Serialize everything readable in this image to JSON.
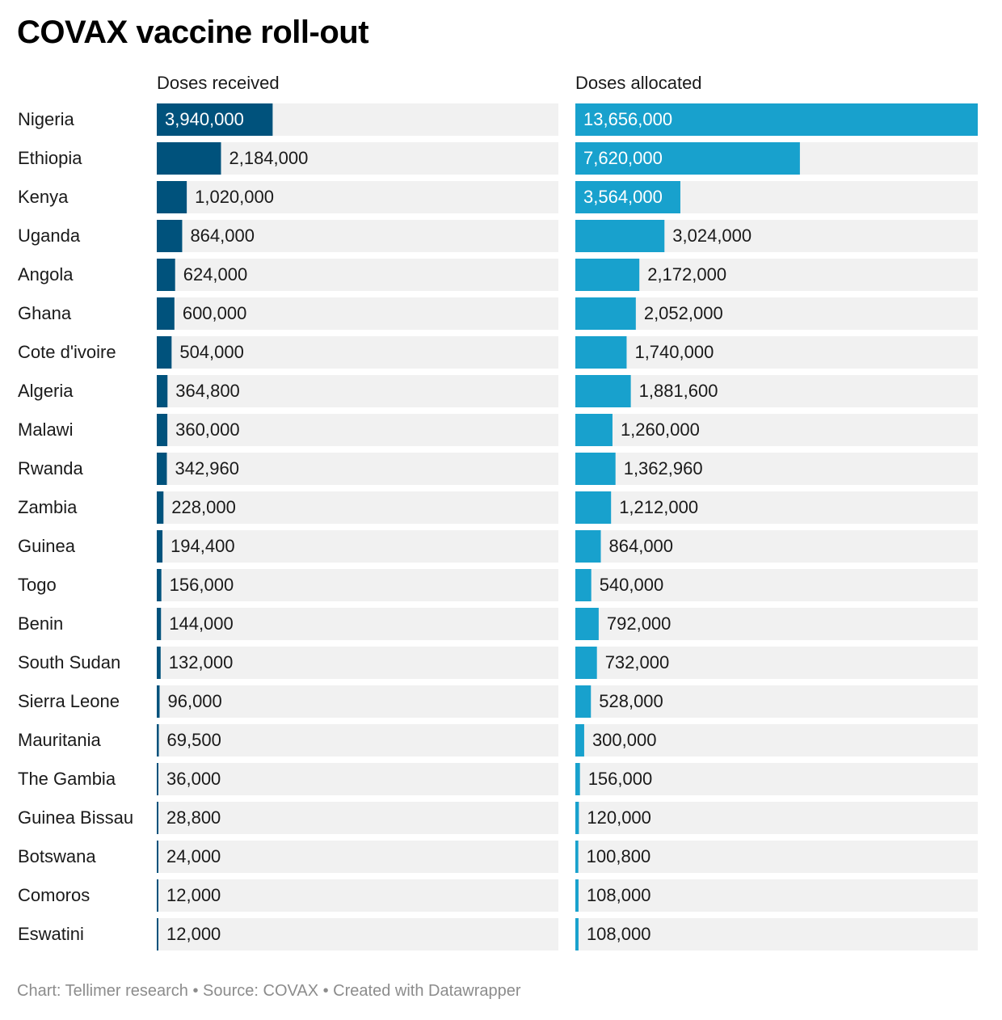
{
  "title": "COVAX vaccine roll-out",
  "footer": "Chart: Tellimer research • Source: COVAX • Created with Datawrapper",
  "colors": {
    "received": "#00527c",
    "allocated": "#18a1cd",
    "track": "#f1f1f1",
    "label_dark": "#1a1a1a",
    "label_light": "#ffffff"
  },
  "chart_data": {
    "type": "bar",
    "orientation": "horizontal",
    "title": "COVAX vaccine roll-out",
    "categories": [
      "Nigeria",
      "Ethiopia",
      "Kenya",
      "Uganda",
      "Angola",
      "Ghana",
      "Cote d'ivoire",
      "Algeria",
      "Malawi",
      "Rwanda",
      "Zambia",
      "Guinea",
      "Togo",
      "Benin",
      "South Sudan",
      "Sierra Leone",
      "Mauritania",
      "The Gambia",
      "Guinea Bissau",
      "Botswana",
      "Comoros",
      "Eswatini"
    ],
    "series": [
      {
        "name": "Doses received",
        "values": [
          3940000,
          2184000,
          1020000,
          864000,
          624000,
          600000,
          504000,
          364800,
          360000,
          342960,
          228000,
          194400,
          156000,
          144000,
          132000,
          96000,
          69500,
          36000,
          28800,
          24000,
          12000,
          12000
        ]
      },
      {
        "name": "Doses allocated",
        "values": [
          13656000,
          7620000,
          3564000,
          3024000,
          2172000,
          2052000,
          1740000,
          1881600,
          1260000,
          1362960,
          1212000,
          864000,
          540000,
          792000,
          732000,
          528000,
          300000,
          156000,
          120000,
          100800,
          108000,
          108000
        ]
      }
    ],
    "xlim": [
      0,
      13656000
    ],
    "value_labels": {
      "received": [
        "3,940,000",
        "2,184,000",
        "1,020,000",
        "864,000",
        "624,000",
        "600,000",
        "504,000",
        "364,800",
        "360,000",
        "342,960",
        "228,000",
        "194,400",
        "156,000",
        "144,000",
        "132,000",
        "96,000",
        "69,500",
        "36,000",
        "28,800",
        "24,000",
        "12,000",
        "12,000"
      ],
      "allocated": [
        "13,656,000",
        "7,620,000",
        "3,564,000",
        "3,024,000",
        "2,172,000",
        "2,052,000",
        "1,740,000",
        "1,881,600",
        "1,260,000",
        "1,362,960",
        "1,212,000",
        "864,000",
        "540,000",
        "792,000",
        "732,000",
        "528,000",
        "300,000",
        "156,000",
        "120,000",
        "100,800",
        "108,000",
        "108,000"
      ]
    },
    "inside_label_count": {
      "received": 1,
      "allocated": 3
    },
    "grid": false,
    "legend": "column headers"
  }
}
